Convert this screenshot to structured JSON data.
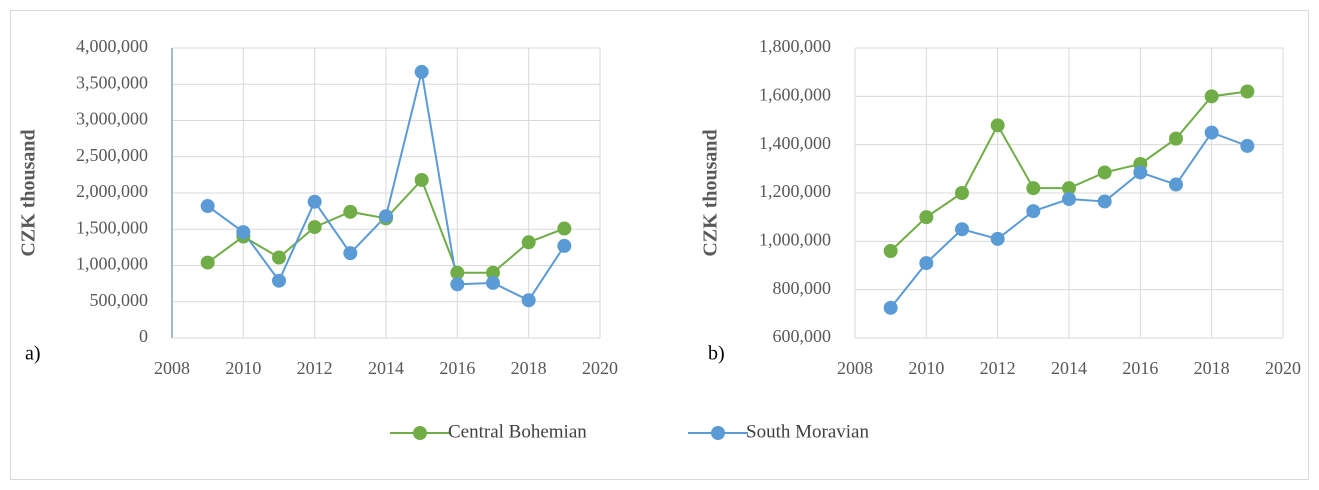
{
  "chart_data": [
    {
      "type": "line",
      "annotation": "a)",
      "y_label": "CZK thousand",
      "x": [
        2009,
        2010,
        2011,
        2012,
        2013,
        2014,
        2015,
        2016,
        2017,
        2018,
        2019
      ],
      "xlim": [
        2008,
        2020
      ],
      "xticks": [
        2008,
        2010,
        2012,
        2014,
        2016,
        2018,
        2020
      ],
      "ylim": [
        0,
        4000000
      ],
      "yticks": [
        0,
        {
          "value": 500000,
          "label": "500,000"
        },
        {
          "value": 1000000,
          "label": "1,000,000"
        },
        {
          "value": 1500000,
          "label": "1,500,000"
        },
        {
          "value": 2000000,
          "label": "2,000,000"
        },
        {
          "value": 2500000,
          "label": "2,500,000"
        },
        {
          "value": 3000000,
          "label": "3,000,000"
        },
        {
          "value": 3500000,
          "label": "3,500,000"
        },
        {
          "value": 4000000,
          "label": "4,000,000"
        }
      ],
      "grid": true,
      "series": [
        {
          "name": "Central Bohemian",
          "color": "#70ad47",
          "values": [
            1040000,
            1400000,
            1110000,
            1530000,
            1740000,
            1650000,
            2180000,
            900000,
            900000,
            1320000,
            1510000
          ]
        },
        {
          "name": "South Moravian",
          "color": "#5b9bd5",
          "values": [
            1820000,
            1460000,
            790000,
            1880000,
            1170000,
            1680000,
            3670000,
            740000,
            760000,
            520000,
            1270000
          ]
        }
      ]
    },
    {
      "type": "line",
      "annotation": "b)",
      "y_label": "CZK thousand",
      "x": [
        2009,
        2010,
        2011,
        2012,
        2013,
        2014,
        2015,
        2016,
        2017,
        2018,
        2019
      ],
      "xlim": [
        2008,
        2020
      ],
      "xticks": [
        2008,
        2010,
        2012,
        2014,
        2016,
        2018,
        2020
      ],
      "ylim": [
        600000,
        1800000
      ],
      "yticks": [
        {
          "value": 600000,
          "label": "600,000"
        },
        {
          "value": 800000,
          "label": "800,000"
        },
        {
          "value": 1000000,
          "label": "1,000,000"
        },
        {
          "value": 1200000,
          "label": "1,200,000"
        },
        {
          "value": 1400000,
          "label": "1,400,000"
        },
        {
          "value": 1600000,
          "label": "1,600,000"
        },
        {
          "value": 1800000,
          "label": "1,800,000"
        }
      ],
      "grid": true,
      "series": [
        {
          "name": "Central Bohemian",
          "color": "#70ad47",
          "values": [
            960000,
            1100000,
            1200000,
            1480000,
            1220000,
            1220000,
            1285000,
            1320000,
            1425000,
            1600000,
            1620000
          ]
        },
        {
          "name": "South Moravian",
          "color": "#5b9bd5",
          "values": [
            725000,
            910000,
            1050000,
            1010000,
            1125000,
            1175000,
            1165000,
            1285000,
            1235000,
            1450000,
            1395000
          ]
        }
      ]
    }
  ]
}
